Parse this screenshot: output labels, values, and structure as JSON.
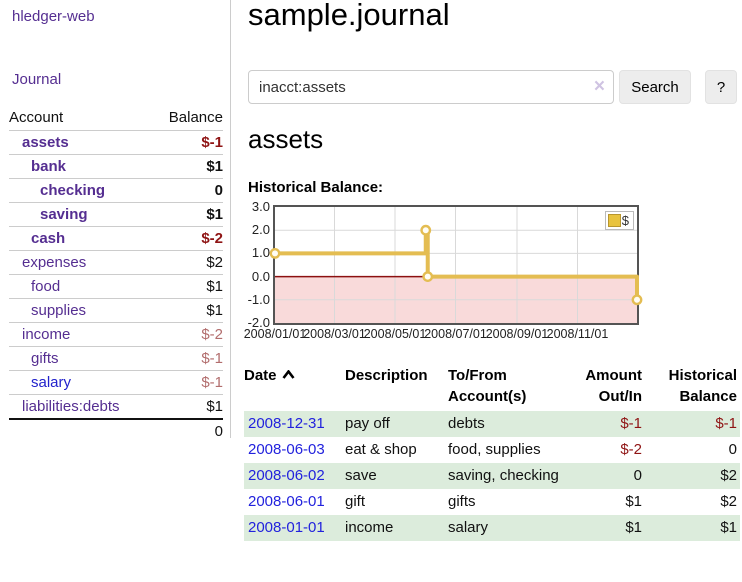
{
  "app_title": "hledger-web",
  "sidebar": {
    "journal_link": "Journal",
    "accounts": {
      "account_header": "Account",
      "balance_header": "Balance",
      "rows": [
        {
          "name": "assets",
          "balance": "$-1"
        },
        {
          "name": "bank",
          "balance": "$1"
        },
        {
          "name": "checking",
          "balance": "0"
        },
        {
          "name": "saving",
          "balance": "$1"
        },
        {
          "name": "cash",
          "balance": "$-2"
        },
        {
          "name": "expenses",
          "balance": "$2"
        },
        {
          "name": "food",
          "balance": "$1"
        },
        {
          "name": "supplies",
          "balance": "$1"
        },
        {
          "name": "income",
          "balance": "$-2"
        },
        {
          "name": "gifts",
          "balance": "$-1"
        },
        {
          "name": "salary",
          "balance": "$-1"
        },
        {
          "name": "liabilities:debts",
          "balance": "$1"
        }
      ],
      "total": "0"
    }
  },
  "main": {
    "page_title": "sample.journal",
    "search": {
      "value": "inacct:assets",
      "clear_icon": "×",
      "search_button": "Search",
      "help_button": "?"
    },
    "account_heading": "assets",
    "chart_heading": "Historical Balance:"
  },
  "chart_data": {
    "type": "line",
    "step": true,
    "title": "Historical Balance",
    "series": [
      {
        "name": "$",
        "points": [
          [
            "2008-01-01",
            1
          ],
          [
            "2008-06-01",
            2
          ],
          [
            "2008-06-03",
            0
          ],
          [
            "2008-12-31",
            -1
          ]
        ]
      }
    ],
    "legend": [
      {
        "label": "$",
        "color": "#e8c33f"
      }
    ],
    "legend_position": "top-right",
    "x_range": [
      "2008-01-01",
      "2008-12-31"
    ],
    "ylim": [
      -2,
      3
    ],
    "y_ticks": [
      "3.0",
      "2.0",
      "1.0",
      "0.0",
      "-1.0",
      "-2.0"
    ],
    "x_ticks": [
      "2008/01/01",
      "2008/03/01",
      "2008/05/01",
      "2008/07/01",
      "2008/09/01",
      "2008/11/01"
    ],
    "grid": true,
    "line_color": "#e4bd52",
    "marker_fill": "#fffdf5",
    "negative_fill": "#f9dada",
    "zero_line_color": "#8c1010",
    "border_color": "#545454"
  },
  "register": {
    "headers": {
      "date": "Date",
      "description": "Description",
      "accounts": "To/From Account(s)",
      "amount": "Amount Out/In",
      "balance": "Historical Balance"
    },
    "rows": [
      {
        "date": "2008-12-31",
        "description": "pay off",
        "accounts": "debts",
        "amount": "$-1",
        "balance": "$-1"
      },
      {
        "date": "2008-06-03",
        "description": "eat & shop",
        "accounts": "food, supplies",
        "amount": "$-2",
        "balance": "0"
      },
      {
        "date": "2008-06-02",
        "description": "save",
        "accounts": "saving, checking",
        "amount": "0",
        "balance": "$2"
      },
      {
        "date": "2008-06-01",
        "description": "gift",
        "accounts": "gifts",
        "amount": "$1",
        "balance": "$2"
      },
      {
        "date": "2008-01-01",
        "description": "income",
        "accounts": "salary",
        "amount": "$1",
        "balance": "$1"
      }
    ]
  }
}
